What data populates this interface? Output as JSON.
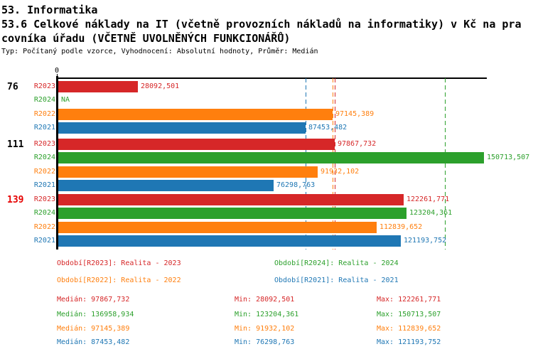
{
  "header": {
    "line1": "53. Informatika",
    "line2": "53.6 Celkové náklady na IT (včetně provozních nákladů na informatiky) v Kč na pra",
    "line3": "covníka úřadu (VČETNĚ UVOLNĚNÝCH FUNKCIONÁŘŮ)",
    "meta": "Typ: Počítaný podle vzorce, Vyhodnocení: Absolutní hodnoty, Průměr: Medián"
  },
  "colors": {
    "R2023": "#d62728",
    "R2024": "#2ca02c",
    "R2022": "#ff7f0e",
    "R2021": "#1f77b4",
    "group_highlight": "#e60000",
    "group_normal": "#000000",
    "axis": "#000000"
  },
  "chart_data": {
    "type": "bar",
    "orientation": "horizontal",
    "origin_tick_label": "0",
    "xlim": [
      0,
      152000
    ],
    "series_order": [
      "R2023",
      "R2024",
      "R2022",
      "R2021"
    ],
    "groups": [
      {
        "label": "76",
        "highlight": false,
        "bars": [
          {
            "series": "R2023",
            "value": 28092.501,
            "label": "28092,501"
          },
          {
            "series": "R2024",
            "value": null,
            "label": "NA"
          },
          {
            "series": "R2022",
            "value": 97145.389,
            "label": "97145,389"
          },
          {
            "series": "R2021",
            "value": 87453.482,
            "label": "87453,482"
          }
        ]
      },
      {
        "label": "111",
        "highlight": false,
        "bars": [
          {
            "series": "R2023",
            "value": 97867.732,
            "label": "97867,732"
          },
          {
            "series": "R2024",
            "value": 150713.507,
            "label": "150713,507"
          },
          {
            "series": "R2022",
            "value": 91932.102,
            "label": "91932,102"
          },
          {
            "series": "R2021",
            "value": 76298.763,
            "label": "76298,763"
          }
        ]
      },
      {
        "label": "139",
        "highlight": true,
        "bars": [
          {
            "series": "R2023",
            "value": 122261.771,
            "label": "122261,771"
          },
          {
            "series": "R2024",
            "value": 123204.361,
            "label": "123204,361"
          },
          {
            "series": "R2022",
            "value": 112839.652,
            "label": "112839,652"
          },
          {
            "series": "R2021",
            "value": 121193.752,
            "label": "121193,752"
          }
        ]
      }
    ],
    "median_lines": [
      {
        "series": "R2023",
        "value": 97867.732
      },
      {
        "series": "R2024",
        "value": 136958.934
      },
      {
        "series": "R2022",
        "value": 97145.389
      },
      {
        "series": "R2021",
        "value": 87453.482
      }
    ]
  },
  "legend": [
    {
      "series": "R2023",
      "label": "Období[R2023]: Realita - 2023"
    },
    {
      "series": "R2024",
      "label": "Období[R2024]: Realita - 2024"
    },
    {
      "series": "R2022",
      "label": "Období[R2022]: Realita - 2022"
    },
    {
      "series": "R2021",
      "label": "Období[R2021]: Realita - 2021"
    }
  ],
  "stats": [
    {
      "series": "R2023",
      "median": "Medián: 97867,732",
      "min": "Min: 28092,501",
      "max": "Max: 122261,771"
    },
    {
      "series": "R2024",
      "median": "Medián: 136958,934",
      "min": "Min: 123204,361",
      "max": "Max: 150713,507"
    },
    {
      "series": "R2022",
      "median": "Medián: 97145,389",
      "min": "Min: 91932,102",
      "max": "Max: 112839,652"
    },
    {
      "series": "R2021",
      "median": "Medián: 87453,482",
      "min": "Min: 76298,763",
      "max": "Max: 121193,752"
    }
  ]
}
